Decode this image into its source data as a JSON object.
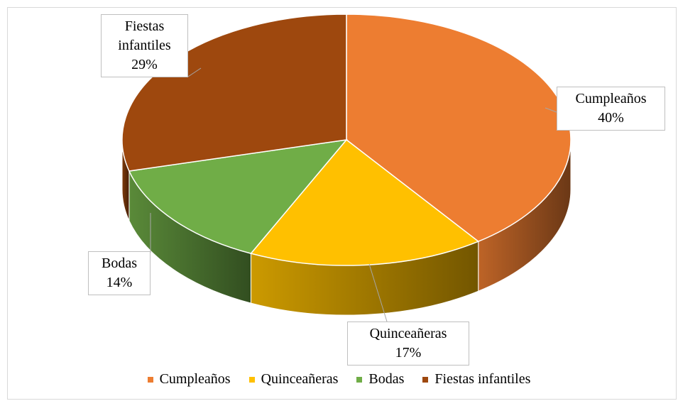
{
  "chart_data": {
    "type": "pie",
    "categories": [
      "Cumpleaños",
      "Quinceañeras",
      "Bodas",
      "Fiestas infantiles"
    ],
    "values": [
      40,
      17,
      14,
      29
    ],
    "value_labels": [
      "40%",
      "17%",
      "14%",
      "29%"
    ],
    "colors": [
      "#ED7D31",
      "#FFC000",
      "#70AD47",
      "#9E480E"
    ],
    "legend": "bottom"
  }
}
